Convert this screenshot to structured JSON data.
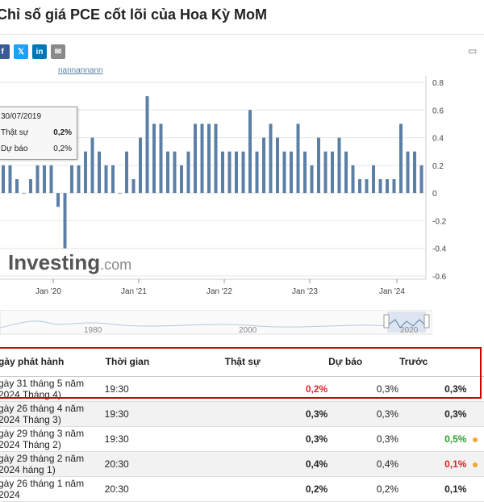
{
  "page": {
    "title": "Chỉ số giá PCE cốt lõi của Hoa Kỳ MoM",
    "share_icons": [
      "facebook-icon",
      "twitter-icon",
      "linkedin-icon",
      "mail-icon"
    ],
    "share_glyphs": [
      "f",
      "𝕏",
      "in",
      "✉"
    ],
    "more_glyph": "▭"
  },
  "chart_data": {
    "type": "bar",
    "color": "#5b7fa6",
    "x_ticks": [
      "Jan '20",
      "Jan '21",
      "Jan '22",
      "Jan '23",
      "Jan '24"
    ],
    "y_ticks": [
      "0.8",
      "0.6",
      "0.4",
      "0.2",
      "0",
      "-0.2",
      "-0.4",
      "-0.6"
    ],
    "ylim": [
      -0.6,
      0.8
    ],
    "values": [
      0.2,
      0.2,
      0.1,
      0.0,
      0.1,
      0.2,
      0.2,
      0.2,
      -0.1,
      -0.4,
      0.2,
      0.2,
      0.3,
      0.4,
      0.3,
      0.2,
      0.2,
      0.0,
      0.3,
      0.1,
      0.4,
      0.7,
      0.5,
      0.5,
      0.3,
      0.3,
      0.2,
      0.3,
      0.5,
      0.5,
      0.5,
      0.5,
      0.3,
      0.3,
      0.3,
      0.3,
      0.6,
      0.3,
      0.4,
      0.5,
      0.4,
      0.3,
      0.3,
      0.5,
      0.3,
      0.2,
      0.4,
      0.3,
      0.3,
      0.4,
      0.3,
      0.2,
      0.1,
      0.1,
      0.2,
      0.1,
      0.1,
      0.1,
      0.5,
      0.3,
      0.3,
      0.2
    ],
    "watermark": "Investing",
    "watermark_suffix": ".com",
    "truncated_legend": "nannannann",
    "tooltip": {
      "date": "30/07/2019",
      "actual_label": "Thật sự",
      "actual_value": "0,2%",
      "forecast_label": "Dự báo",
      "forecast_value": "0,2%"
    }
  },
  "navigator": {
    "labels": [
      "1980",
      "2000",
      "2020"
    ]
  },
  "table": {
    "headers": {
      "date": "gày phát hành",
      "time": "Thời gian",
      "actual": "Thật sự",
      "forecast": "Dự báo",
      "previous": "Trước"
    },
    "rows": [
      {
        "date": "gày 31 tháng 5 năm 2024 Tháng 4)",
        "time": "19:30",
        "actual": "0,2%",
        "forecast": "0,3%",
        "previous": "0,3%",
        "actual_color": "red",
        "prev_color": "",
        "dot": false
      },
      {
        "date": "gày 26 tháng 4 năm 2024 Tháng 3)",
        "time": "19:30",
        "actual": "0,3%",
        "forecast": "0,3%",
        "previous": "0,3%",
        "actual_color": "",
        "prev_color": "",
        "dot": false
      },
      {
        "date": "gày 29 tháng 3 năm 2024 Tháng 2)",
        "time": "19:30",
        "actual": "0,3%",
        "forecast": "0,3%",
        "previous": "0,5%",
        "actual_color": "",
        "prev_color": "green",
        "dot": true
      },
      {
        "date": "gày 29 tháng 2 năm 2024 háng 1)",
        "time": "20:30",
        "actual": "0,4%",
        "forecast": "0,4%",
        "previous": "0,1%",
        "actual_color": "",
        "prev_color": "red",
        "dot": true
      },
      {
        "date": "gày 26 tháng 1 năm 2024",
        "time": "20:30",
        "actual": "0,2%",
        "forecast": "0,2%",
        "previous": "0,1%",
        "actual_color": "",
        "prev_color": "",
        "dot": false
      }
    ]
  }
}
